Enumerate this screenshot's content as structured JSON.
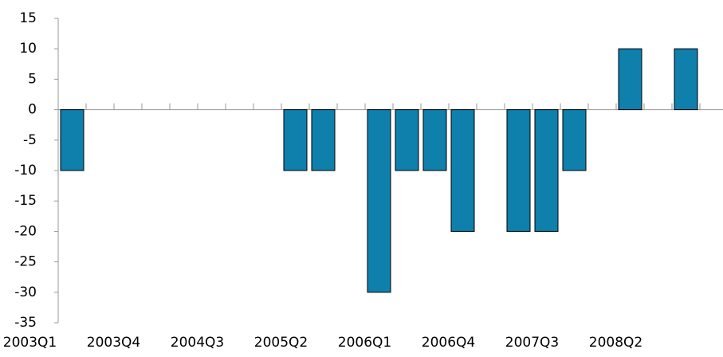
{
  "chart_data": {
    "type": "bar",
    "categories": [
      "2003Q1",
      null,
      null,
      "2003Q4",
      null,
      null,
      "2004Q3",
      null,
      null,
      "2005Q2",
      null,
      null,
      "2006Q1",
      null,
      null,
      "2006Q4",
      null,
      null,
      "2007Q3",
      null,
      null,
      "2008Q2",
      null,
      null
    ],
    "values": [
      -10,
      0,
      0,
      0,
      0,
      0,
      0,
      0,
      -10,
      -10,
      0,
      -30,
      -10,
      -10,
      -20,
      0,
      -20,
      -20,
      -10,
      0,
      10,
      0,
      10,
      0
    ],
    "color": "#0f7fab",
    "ylim": [
      -35,
      15
    ],
    "yticks": [
      -35,
      -30,
      -25,
      -20,
      -15,
      -10,
      -5,
      0,
      5,
      10,
      15
    ]
  }
}
